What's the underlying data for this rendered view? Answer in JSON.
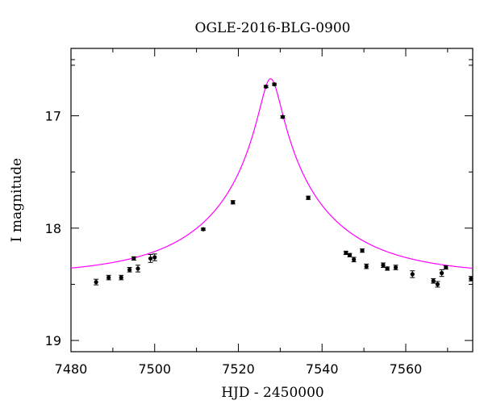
{
  "chart_data": {
    "type": "scatter",
    "title": "OGLE-2016-BLG-0900",
    "xlabel": "HJD - 2450000",
    "ylabel": "I magnitude",
    "xlim": [
      7480,
      7576
    ],
    "ylim": [
      16.4,
      19.1
    ],
    "y_inverted": true,
    "grid": false,
    "x_ticks": [
      7480,
      7500,
      7520,
      7540,
      7560
    ],
    "y_ticks": [
      17,
      18,
      19
    ],
    "x_tick_labels": [
      "7480",
      "7500",
      "7520",
      "7540",
      "7560"
    ],
    "y_tick_labels": [
      "17",
      "18",
      "19"
    ],
    "x_minor_step": 10,
    "y_minor_step": 0.5,
    "model": {
      "color": "#ff00ff",
      "baseline": 18.42,
      "peak_time": 7527.7,
      "peak_mag": 16.67,
      "u0": 0.086,
      "tE": 28
    },
    "points": {
      "color": "#000000",
      "x": [
        7486.0,
        7489.0,
        7492.0,
        7494.0,
        7495.0,
        7496.0,
        7499.0,
        7500.0,
        7511.6,
        7518.7,
        7526.6,
        7528.6,
        7530.6,
        7536.7,
        7545.7,
        7546.6,
        7547.6,
        7549.6,
        7550.6,
        7554.6,
        7555.6,
        7557.6,
        7561.6,
        7566.6,
        7567.6,
        7568.6,
        7569.6,
        7575.6
      ],
      "y": [
        18.48,
        18.44,
        18.44,
        18.37,
        18.27,
        18.36,
        18.27,
        18.26,
        18.01,
        17.77,
        16.74,
        16.72,
        17.01,
        17.73,
        18.22,
        18.24,
        18.28,
        18.2,
        18.34,
        18.33,
        18.36,
        18.35,
        18.41,
        18.47,
        18.5,
        18.4,
        18.35,
        18.45
      ],
      "err": [
        0.025,
        0.02,
        0.02,
        0.02,
        0.015,
        0.03,
        0.035,
        0.03,
        0.01,
        0.015,
        0.01,
        0.01,
        0.01,
        0.015,
        0.015,
        0.015,
        0.02,
        0.015,
        0.02,
        0.02,
        0.015,
        0.02,
        0.03,
        0.02,
        0.025,
        0.03,
        0.015,
        0.02
      ]
    }
  }
}
